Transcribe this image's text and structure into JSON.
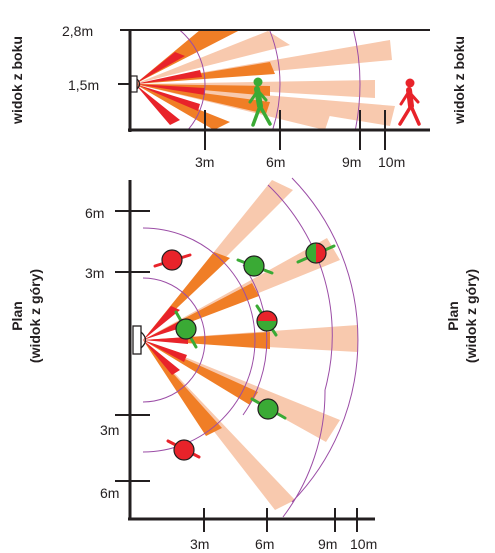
{
  "side_view": {
    "side_label_left": "widok z boku",
    "side_label_right": "widok z boku",
    "height_top": "2,8m",
    "height_mid": "1,5m",
    "distances": [
      "3m",
      "6m",
      "9m",
      "10m"
    ]
  },
  "plan_view": {
    "side_label_left_line1": "Plan",
    "side_label_left_line2": "(widok z góry)",
    "side_label_right_line1": "Plan",
    "side_label_right_line2": "(widok z góry)",
    "y_top": "6m",
    "y_upper": "3m",
    "y_lower": "3m",
    "y_bottom": "6m",
    "distances": [
      "3m",
      "6m",
      "9m",
      "10m"
    ]
  },
  "colors": {
    "near_zone": "#e8232a",
    "mid_zone": "#f07e26",
    "far_zone": "#f8c9ae",
    "arc": "#9b4da6",
    "axis": "#231f20",
    "person_detected": "#3aaa35",
    "person_not_detected": "#e8232a"
  }
}
